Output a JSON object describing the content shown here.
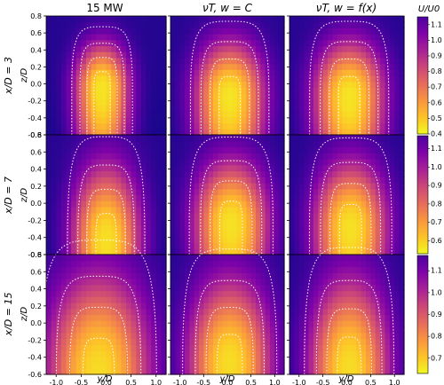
{
  "figure": {
    "column_titles": [
      "15 MW",
      "νT, w = C",
      "νT, w = f(x)"
    ],
    "row_labels": [
      "x/D = 3",
      "x/D = 7",
      "x/D = 15"
    ],
    "ylabel": "z/D",
    "xlabel": "y/D",
    "colorbar_label": "U/U0"
  },
  "chart_data": [
    {
      "type": "heatmap",
      "title": "15 MW",
      "row": "x/D = 3",
      "xlabel": "",
      "ylabel": "z/D",
      "xlim": [
        -1.2,
        1.2
      ],
      "ylim": [
        -0.6,
        0.8
      ],
      "x_ticks": [
        "-1.0",
        "-0.5",
        "0.0",
        "0.5",
        "1.0"
      ],
      "y_ticks": [
        "-0.6",
        "-0.4",
        "-0.2",
        "0.0",
        "0.2",
        "0.4",
        "0.6",
        "0.8"
      ],
      "wake": {
        "center_y": -0.08,
        "center_z": -0.05,
        "width": 0.55,
        "top": 0.48,
        "min_velocity": 0.42
      },
      "contours": "dotted white",
      "colorbar": {
        "label": "U/U0",
        "range": [
          0.4,
          1.15
        ],
        "ticks": [
          "0.4",
          "0.5",
          "0.6",
          "0.7",
          "0.8",
          "0.9",
          "1.0",
          "1.1"
        ]
      }
    },
    {
      "type": "heatmap",
      "title": "νT, w = C",
      "row": "x/D = 3",
      "xlim": [
        -1.2,
        1.2
      ],
      "ylim": [
        -0.6,
        0.8
      ],
      "wake": {
        "center_y": 0.05,
        "center_z": -0.15,
        "width": 0.75,
        "top": 0.5,
        "min_velocity": 0.4
      },
      "contours": "dotted white"
    },
    {
      "type": "heatmap",
      "title": "νT, w = f(x)",
      "row": "x/D = 3",
      "xlim": [
        -1.2,
        1.2
      ],
      "ylim": [
        -0.6,
        0.8
      ],
      "wake": {
        "center_y": 0.05,
        "center_z": -0.15,
        "width": 0.75,
        "top": 0.5,
        "min_velocity": 0.4
      },
      "contours": "dotted white"
    },
    {
      "type": "heatmap",
      "title": "15 MW",
      "row": "x/D = 7",
      "xlim": [
        -1.2,
        1.2
      ],
      "ylim": [
        -0.6,
        0.8
      ],
      "x_ticks": [
        "-1.0",
        "-0.5",
        "0.0",
        "0.5",
        "1.0"
      ],
      "y_ticks": [
        "-0.6",
        "-0.4",
        "-0.2",
        "0.0",
        "0.2",
        "0.4",
        "0.6",
        "0.8"
      ],
      "wake": {
        "center_y": 0.0,
        "center_z": -0.45,
        "width": 0.7,
        "top": 0.45,
        "min_velocity": 0.56
      },
      "contours": "dotted white",
      "colorbar": {
        "label": "",
        "range": [
          0.53,
          1.17
        ],
        "ticks": [
          "0.6",
          "0.7",
          "0.8",
          "0.9",
          "1.0",
          "1.1"
        ]
      }
    },
    {
      "type": "heatmap",
      "title": "νT, w = C",
      "row": "x/D = 7",
      "xlim": [
        -1.2,
        1.2
      ],
      "ylim": [
        -0.6,
        0.8
      ],
      "wake": {
        "center_y": 0.08,
        "center_z": -0.25,
        "width": 0.8,
        "top": 0.5,
        "min_velocity": 0.55
      },
      "contours": "dotted white"
    },
    {
      "type": "heatmap",
      "title": "νT, w = f(x)",
      "row": "x/D = 7",
      "xlim": [
        -1.2,
        1.2
      ],
      "ylim": [
        -0.6,
        0.8
      ],
      "wake": {
        "center_y": 0.08,
        "center_z": -0.3,
        "width": 0.78,
        "top": 0.48,
        "min_velocity": 0.56
      },
      "contours": "dotted white"
    },
    {
      "type": "heatmap",
      "title": "15 MW",
      "row": "x/D = 15",
      "xlim": [
        -1.2,
        1.2
      ],
      "ylim": [
        -0.6,
        0.8
      ],
      "x_ticks": [
        "-1.0",
        "-0.5",
        "0.0",
        "0.5",
        "1.0"
      ],
      "y_ticks": [
        "-0.6",
        "-0.4",
        "-0.2",
        "0.0",
        "0.2",
        "0.4",
        "0.6",
        "0.8"
      ],
      "wake": {
        "center_y": -0.15,
        "center_z": -0.6,
        "width": 1.05,
        "top": 0.55,
        "min_velocity": 0.68
      },
      "contours": "dotted white",
      "colorbar": {
        "label": "",
        "range": [
          0.63,
          1.17
        ],
        "ticks": [
          "0.7",
          "0.8",
          "0.9",
          "1.0",
          "1.1"
        ]
      }
    },
    {
      "type": "heatmap",
      "title": "νT, w = C",
      "row": "x/D = 15",
      "xlim": [
        -1.2,
        1.2
      ],
      "ylim": [
        -0.6,
        0.8
      ],
      "wake": {
        "center_y": 0.05,
        "center_z": -0.5,
        "width": 0.9,
        "top": 0.5,
        "min_velocity": 0.67
      },
      "contours": "dotted white"
    },
    {
      "type": "heatmap",
      "title": "νT, w = f(x)",
      "row": "x/D = 15",
      "xlim": [
        -1.2,
        1.2
      ],
      "ylim": [
        -0.6,
        0.8
      ],
      "wake": {
        "center_y": 0.05,
        "center_z": -0.55,
        "width": 0.85,
        "top": 0.5,
        "min_velocity": 0.67
      },
      "contours": "dotted white"
    }
  ]
}
